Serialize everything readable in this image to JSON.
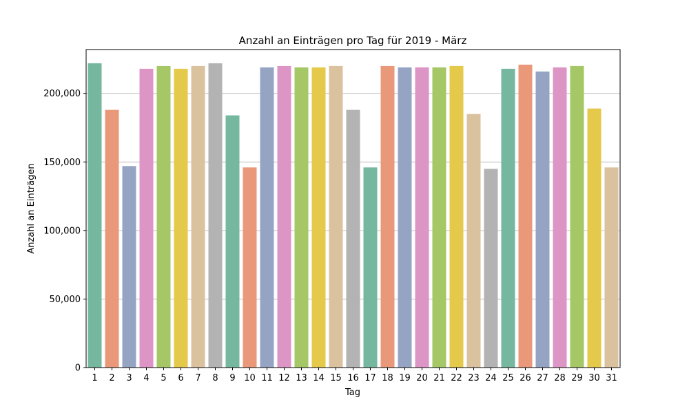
{
  "chart_data": {
    "type": "bar",
    "title": "Anzahl an Einträgen pro Tag für 2019 - März",
    "xlabel": "Tag",
    "ylabel": "Anzahl an Einträgen",
    "ylim": [
      0,
      232000
    ],
    "yticks": [
      0,
      50000,
      100000,
      150000,
      200000
    ],
    "ytick_labels": [
      "0",
      "50,000",
      "100,000",
      "150,000",
      "200,000"
    ],
    "grid": "horizontal",
    "categories": [
      "1",
      "2",
      "3",
      "4",
      "5",
      "6",
      "7",
      "8",
      "9",
      "10",
      "11",
      "12",
      "13",
      "14",
      "15",
      "16",
      "17",
      "18",
      "19",
      "20",
      "21",
      "22",
      "23",
      "24",
      "25",
      "26",
      "27",
      "28",
      "29",
      "30",
      "31"
    ],
    "values": [
      222000,
      188000,
      147000,
      218000,
      220000,
      218000,
      220000,
      222000,
      184000,
      146000,
      219000,
      220000,
      219000,
      219000,
      220000,
      188000,
      146000,
      220000,
      219000,
      219000,
      219000,
      220000,
      185000,
      145000,
      218000,
      221000,
      216000,
      219000,
      220000,
      189000,
      146000
    ],
    "palette": [
      "#76b7a0",
      "#e9987a",
      "#96a4c4",
      "#dc95c4",
      "#a5c766",
      "#e4c94a",
      "#dbc29f",
      "#b3b3b3"
    ]
  }
}
